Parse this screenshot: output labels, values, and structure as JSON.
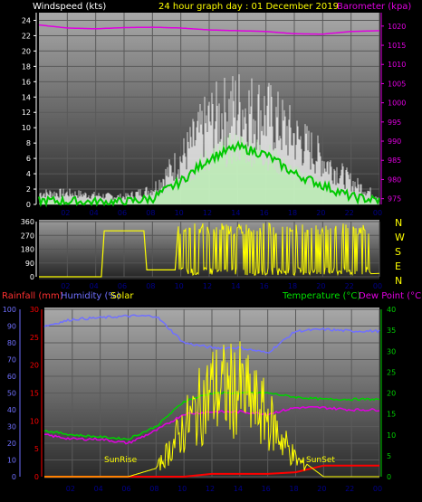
{
  "header": {
    "wind_label": "Windspeed (kts)",
    "title": "24 hour graph day : 01 December 2019",
    "baro_label": "Barometer (kpa)"
  },
  "middle": {
    "compass": [
      "N",
      "W",
      "S",
      "E",
      "N"
    ]
  },
  "bottom_header": {
    "rain_label": "Rainfall (mm)",
    "humidity_label": "Humidity (%)",
    "solar_label": "Solar",
    "temp_label": "Temperature (°C)",
    "dew_label": "Dew Point (°C)"
  },
  "annotations": {
    "sunrise": "SunRise",
    "sunset": "SunSet"
  },
  "colors": {
    "panel_bg_top": "#a9a9a9",
    "panel_bg_bottom": "#2a2a2a",
    "wind_gust": "#ffffff",
    "wind_avg_band": "#b8f2b0",
    "wind_avg": "#00c800",
    "barometer": "#e000e0",
    "direction": "#ffff00",
    "rain": "#ff0000",
    "humidity": "#7070ff",
    "solar": "#ffff00",
    "temperature": "#00d000",
    "dew_point": "#e000e0",
    "x_ticks": "#00008b"
  },
  "chart_data": [
    {
      "type": "line",
      "title": "24 hour graph day : 01 December 2019",
      "x_ticks": [
        "02",
        "04",
        "06",
        "08",
        "10",
        "12",
        "14",
        "16",
        "18",
        "20",
        "22",
        "00"
      ],
      "y_left_label": "Windspeed (kts)",
      "y_left_ticks": [
        0,
        2,
        4,
        6,
        8,
        10,
        12,
        14,
        16,
        18,
        20,
        22,
        24
      ],
      "y_left_lim": [
        0,
        25
      ],
      "y_right_label": "Barometer (kpa)",
      "y_right_ticks": [
        975,
        980,
        985,
        990,
        995,
        1000,
        1005,
        1010,
        1015,
        1020
      ],
      "y_right_lim": [
        973.5,
        1023.5
      ],
      "hours": [
        0,
        2,
        4,
        6,
        8,
        10,
        12,
        14,
        16,
        18,
        20,
        22,
        24
      ],
      "series": [
        {
          "name": "Gust",
          "axis": "left",
          "values": [
            1.5,
            1.5,
            1.2,
            1.0,
            2.0,
            6.0,
            11.0,
            13.0,
            12.0,
            9.0,
            6.0,
            3.0,
            1.0
          ]
        },
        {
          "name": "Average",
          "axis": "left",
          "values": [
            0.5,
            0.4,
            0.3,
            0.3,
            0.8,
            3.0,
            6.0,
            7.5,
            6.5,
            4.0,
            2.5,
            1.0,
            0.5
          ]
        },
        {
          "name": "Barometer",
          "axis": "right",
          "values": [
            1020.3,
            1019.5,
            1019.3,
            1019.6,
            1019.7,
            1019.5,
            1019.0,
            1018.8,
            1018.6,
            1018.0,
            1017.9,
            1018.6,
            1018.8
          ]
        }
      ]
    },
    {
      "type": "line",
      "x_ticks": [
        "02",
        "04",
        "06",
        "08",
        "10",
        "12",
        "14",
        "16",
        "18",
        "20",
        "22",
        "00"
      ],
      "y_ticks": [
        0,
        90,
        180,
        270,
        360
      ],
      "y_lim": [
        0,
        360
      ],
      "series": [
        {
          "name": "Direction",
          "x": [
            0,
            4.4,
            4.6,
            7.4,
            7.6,
            9.6,
            9.8,
            24
          ],
          "values": [
            0,
            0,
            300,
            300,
            45,
            45,
            300,
            20
          ]
        }
      ]
    },
    {
      "type": "line",
      "x_ticks": [
        "02",
        "04",
        "06",
        "08",
        "10",
        "12",
        "14",
        "16",
        "18",
        "20",
        "22",
        "00"
      ],
      "y_left_label": "Humidity (%)",
      "y_left_ticks": [
        0,
        10,
        20,
        30,
        40,
        50,
        60,
        70,
        80,
        90,
        100
      ],
      "y_left_lim": [
        0,
        100
      ],
      "y_rain_label": "Rainfall (mm)",
      "y_rain_ticks": [
        0,
        5,
        10,
        15,
        20,
        25,
        30
      ],
      "y_rain_lim": [
        0,
        30
      ],
      "y_right_label": "Temperature (°C)",
      "y_right_ticks": [
        0,
        5,
        10,
        15,
        20,
        25,
        30,
        35,
        40
      ],
      "y_right_lim": [
        0,
        40
      ],
      "hours": [
        0,
        2,
        4,
        6,
        8,
        10,
        12,
        14,
        16,
        18,
        20,
        22,
        24
      ],
      "series": [
        {
          "name": "Humidity",
          "axis": "left",
          "values": [
            90,
            94,
            95,
            96,
            96,
            80,
            77,
            77,
            74,
            87,
            88,
            87,
            87
          ]
        },
        {
          "name": "Temperature",
          "axis": "right",
          "values": [
            11,
            10,
            9.5,
            9,
            12,
            18,
            20,
            20,
            20,
            19,
            18.5,
            18.5,
            18.5
          ]
        },
        {
          "name": "Dew Point",
          "axis": "right",
          "values": [
            10,
            9,
            9,
            8,
            11,
            15,
            15.5,
            15.5,
            15,
            16.5,
            16.5,
            16,
            16
          ]
        },
        {
          "name": "Rainfall",
          "axis": "rain",
          "values": [
            0,
            0,
            0,
            0,
            0,
            0,
            0.5,
            0.5,
            0.5,
            0.8,
            2,
            2,
            2
          ]
        },
        {
          "name": "Solar",
          "axis": "right",
          "values": [
            0,
            0,
            0,
            0,
            2,
            14,
            25,
            25,
            17,
            5,
            0,
            0,
            0
          ]
        }
      ]
    }
  ]
}
